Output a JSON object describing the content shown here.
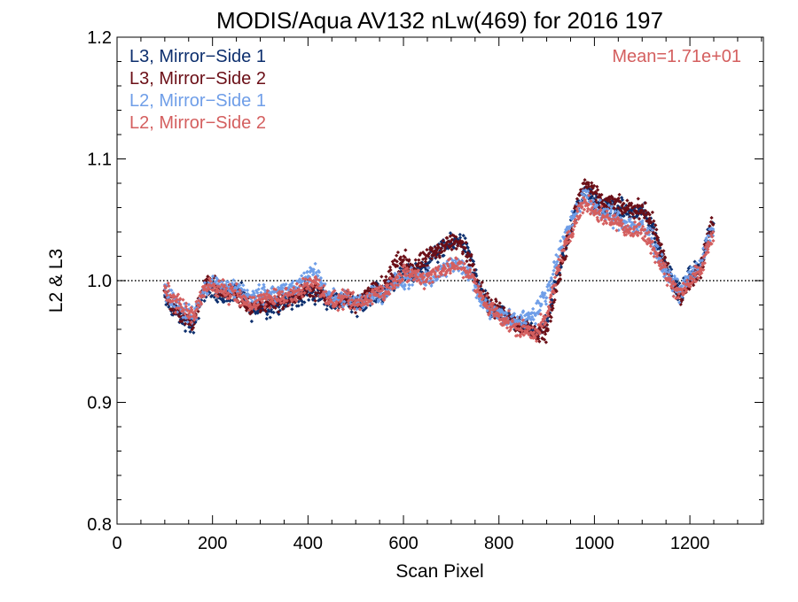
{
  "chart_data": {
    "type": "scatter",
    "title": "MODIS/Aqua AV132 nLw(469) for 2016 197",
    "xlabel": "Scan Pixel",
    "ylabel": "L2 & L3",
    "xlim": [
      0,
      1354
    ],
    "ylim": [
      0.8,
      1.2
    ],
    "x_ticks": [
      "0",
      "200",
      "400",
      "600",
      "800",
      "1000",
      "1200"
    ],
    "y_ticks": [
      "0.8",
      "0.9",
      "1.0",
      "1.1",
      "1.2"
    ],
    "reference_line": 1.0,
    "annotation": "Mean=1.71e+01",
    "legend_position": "top-left",
    "series": [
      {
        "name": "L3, Mirror−Side 1",
        "color": "#0d2f6e",
        "profile": [
          [
            100,
            0.985
          ],
          [
            120,
            0.975
          ],
          [
            140,
            0.968
          ],
          [
            160,
            0.962
          ],
          [
            180,
            0.99
          ],
          [
            200,
            0.995
          ],
          [
            220,
            0.985
          ],
          [
            240,
            0.99
          ],
          [
            260,
            0.99
          ],
          [
            280,
            0.975
          ],
          [
            300,
            0.978
          ],
          [
            320,
            0.978
          ],
          [
            340,
            0.98
          ],
          [
            360,
            0.982
          ],
          [
            380,
            0.985
          ],
          [
            400,
            0.99
          ],
          [
            420,
            0.99
          ],
          [
            440,
            0.985
          ],
          [
            460,
            0.982
          ],
          [
            480,
            0.985
          ],
          [
            500,
            0.978
          ],
          [
            520,
            0.985
          ],
          [
            540,
            0.99
          ],
          [
            560,
            0.99
          ],
          [
            580,
            1.0
          ],
          [
            600,
            1.005
          ],
          [
            620,
            1.005
          ],
          [
            640,
            1.01
          ],
          [
            660,
            1.02
          ],
          [
            680,
            1.025
          ],
          [
            700,
            1.03
          ],
          [
            720,
            1.035
          ],
          [
            740,
            1.02
          ],
          [
            760,
            0.99
          ],
          [
            780,
            0.978
          ],
          [
            800,
            0.972
          ],
          [
            820,
            0.968
          ],
          [
            840,
            0.962
          ],
          [
            860,
            0.96
          ],
          [
            880,
            0.958
          ],
          [
            900,
            0.965
          ],
          [
            920,
            1.0
          ],
          [
            940,
            1.03
          ],
          [
            960,
            1.055
          ],
          [
            980,
            1.075
          ],
          [
            1000,
            1.065
          ],
          [
            1020,
            1.06
          ],
          [
            1040,
            1.062
          ],
          [
            1060,
            1.058
          ],
          [
            1080,
            1.055
          ],
          [
            1100,
            1.058
          ],
          [
            1120,
            1.045
          ],
          [
            1140,
            1.02
          ],
          [
            1160,
            1.005
          ],
          [
            1180,
            0.988
          ],
          [
            1200,
            1.005
          ],
          [
            1220,
            1.01
          ],
          [
            1240,
            1.04
          ],
          [
            1250,
            1.045
          ]
        ]
      },
      {
        "name": "L3, Mirror−Side 2",
        "color": "#6b0f17",
        "profile": [
          [
            100,
            0.99
          ],
          [
            120,
            0.978
          ],
          [
            140,
            0.97
          ],
          [
            160,
            0.965
          ],
          [
            180,
            0.995
          ],
          [
            200,
            0.998
          ],
          [
            220,
            0.99
          ],
          [
            240,
            0.992
          ],
          [
            260,
            0.985
          ],
          [
            280,
            0.978
          ],
          [
            300,
            0.98
          ],
          [
            320,
            0.982
          ],
          [
            340,
            0.983
          ],
          [
            360,
            0.985
          ],
          [
            380,
            0.988
          ],
          [
            400,
            0.993
          ],
          [
            420,
            0.993
          ],
          [
            440,
            0.985
          ],
          [
            460,
            0.983
          ],
          [
            480,
            0.987
          ],
          [
            500,
            0.98
          ],
          [
            520,
            0.988
          ],
          [
            540,
            0.993
          ],
          [
            560,
            0.995
          ],
          [
            580,
            1.012
          ],
          [
            600,
            1.018
          ],
          [
            620,
            1.01
          ],
          [
            640,
            1.015
          ],
          [
            660,
            1.022
          ],
          [
            680,
            1.028
          ],
          [
            700,
            1.032
          ],
          [
            720,
            1.03
          ],
          [
            740,
            1.018
          ],
          [
            760,
            0.995
          ],
          [
            780,
            0.98
          ],
          [
            800,
            0.975
          ],
          [
            820,
            0.97
          ],
          [
            840,
            0.965
          ],
          [
            860,
            0.962
          ],
          [
            880,
            0.955
          ],
          [
            900,
            0.958
          ],
          [
            920,
            0.995
          ],
          [
            940,
            1.025
          ],
          [
            960,
            1.06
          ],
          [
            980,
            1.08
          ],
          [
            1000,
            1.07
          ],
          [
            1020,
            1.065
          ],
          [
            1040,
            1.063
          ],
          [
            1060,
            1.06
          ],
          [
            1080,
            1.058
          ],
          [
            1100,
            1.06
          ],
          [
            1120,
            1.048
          ],
          [
            1140,
            1.025
          ],
          [
            1160,
            1.0
          ],
          [
            1180,
            0.985
          ],
          [
            1200,
            1.0
          ],
          [
            1220,
            1.005
          ],
          [
            1240,
            1.04
          ],
          [
            1250,
            1.048
          ]
        ]
      },
      {
        "name": "L2, Mirror−Side 1",
        "color": "#6f9ee8",
        "profile": [
          [
            100,
            0.99
          ],
          [
            120,
            0.985
          ],
          [
            140,
            0.975
          ],
          [
            160,
            0.97
          ],
          [
            180,
            0.99
          ],
          [
            200,
            0.998
          ],
          [
            220,
            0.995
          ],
          [
            240,
            0.995
          ],
          [
            260,
            0.992
          ],
          [
            280,
            0.985
          ],
          [
            300,
            0.99
          ],
          [
            320,
            0.99
          ],
          [
            340,
            0.992
          ],
          [
            360,
            0.992
          ],
          [
            380,
            0.995
          ],
          [
            400,
            1.005
          ],
          [
            420,
            1.005
          ],
          [
            440,
            0.99
          ],
          [
            460,
            0.985
          ],
          [
            480,
            0.985
          ],
          [
            500,
            0.98
          ],
          [
            520,
            0.985
          ],
          [
            540,
            0.99
          ],
          [
            560,
            0.99
          ],
          [
            580,
            0.998
          ],
          [
            600,
            1.0
          ],
          [
            620,
            1.002
          ],
          [
            640,
            1.0
          ],
          [
            660,
            1.002
          ],
          [
            680,
            1.008
          ],
          [
            700,
            1.012
          ],
          [
            720,
            1.015
          ],
          [
            740,
            1.005
          ],
          [
            760,
            0.985
          ],
          [
            780,
            0.975
          ],
          [
            800,
            0.972
          ],
          [
            820,
            0.968
          ],
          [
            840,
            0.968
          ],
          [
            860,
            0.97
          ],
          [
            880,
            0.975
          ],
          [
            900,
            0.99
          ],
          [
            920,
            1.015
          ],
          [
            940,
            1.04
          ],
          [
            960,
            1.055
          ],
          [
            980,
            1.07
          ],
          [
            1000,
            1.06
          ],
          [
            1020,
            1.055
          ],
          [
            1040,
            1.052
          ],
          [
            1060,
            1.048
          ],
          [
            1080,
            1.045
          ],
          [
            1100,
            1.045
          ],
          [
            1120,
            1.035
          ],
          [
            1140,
            1.015
          ],
          [
            1160,
            1.0
          ],
          [
            1180,
            0.99
          ],
          [
            1200,
            1.005
          ],
          [
            1220,
            1.01
          ],
          [
            1240,
            1.035
          ],
          [
            1250,
            1.04
          ]
        ]
      },
      {
        "name": "L2, Mirror−Side 2",
        "color": "#d45f5f",
        "profile": [
          [
            100,
            0.992
          ],
          [
            120,
            0.985
          ],
          [
            140,
            0.977
          ],
          [
            160,
            0.97
          ],
          [
            180,
            0.992
          ],
          [
            200,
            0.995
          ],
          [
            220,
            0.992
          ],
          [
            240,
            0.99
          ],
          [
            260,
            0.985
          ],
          [
            280,
            0.98
          ],
          [
            300,
            0.985
          ],
          [
            320,
            0.985
          ],
          [
            340,
            0.986
          ],
          [
            360,
            0.987
          ],
          [
            380,
            0.99
          ],
          [
            400,
            0.998
          ],
          [
            420,
            0.998
          ],
          [
            440,
            0.985
          ],
          [
            460,
            0.982
          ],
          [
            480,
            0.985
          ],
          [
            500,
            0.98
          ],
          [
            520,
            0.984
          ],
          [
            540,
            0.99
          ],
          [
            560,
            0.99
          ],
          [
            580,
            1.0
          ],
          [
            600,
            1.005
          ],
          [
            620,
            1.005
          ],
          [
            640,
            1.002
          ],
          [
            660,
            1.005
          ],
          [
            680,
            1.01
          ],
          [
            700,
            1.012
          ],
          [
            720,
            1.012
          ],
          [
            740,
            1.005
          ],
          [
            760,
            0.988
          ],
          [
            780,
            0.978
          ],
          [
            800,
            0.972
          ],
          [
            820,
            0.965
          ],
          [
            840,
            0.96
          ],
          [
            860,
            0.958
          ],
          [
            880,
            0.958
          ],
          [
            900,
            0.968
          ],
          [
            920,
            1.005
          ],
          [
            940,
            1.03
          ],
          [
            960,
            1.05
          ],
          [
            980,
            1.065
          ],
          [
            1000,
            1.058
          ],
          [
            1020,
            1.052
          ],
          [
            1040,
            1.05
          ],
          [
            1060,
            1.045
          ],
          [
            1080,
            1.04
          ],
          [
            1100,
            1.042
          ],
          [
            1120,
            1.03
          ],
          [
            1140,
            1.012
          ],
          [
            1160,
            0.998
          ],
          [
            1180,
            0.99
          ],
          [
            1200,
            1.0
          ],
          [
            1220,
            1.005
          ],
          [
            1240,
            1.03
          ],
          [
            1250,
            1.038
          ]
        ]
      }
    ]
  }
}
